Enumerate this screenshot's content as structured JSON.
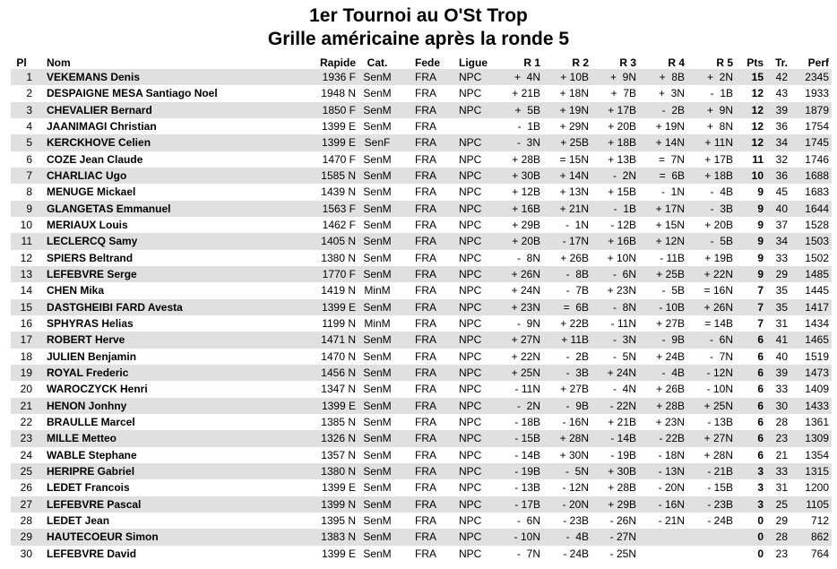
{
  "title": "1er Tournoi au O'St Trop",
  "subtitle": "Grille américaine après la ronde 5",
  "headers": [
    "Pl",
    "Nom",
    "Rapide",
    "Cat.",
    "Fede",
    "Ligue",
    "R 1",
    "R 2",
    "R 3",
    "R 4",
    "R 5",
    "Pts",
    "Tr.",
    "Perf"
  ],
  "rows": [
    [
      "1",
      "VEKEMANS Denis",
      "1936 F",
      "SenM",
      "FRA",
      "NPC",
      "+  4N",
      "+ 10B",
      "+  9N",
      "+  8B",
      "+  2N",
      "15",
      "42",
      "2345"
    ],
    [
      "2",
      "DESPAIGNE MESA Santiago Noel",
      "1948 N",
      "SenM",
      "FRA",
      "NPC",
      "+ 21B",
      "+ 18N",
      "+  7B",
      "+  3N",
      "-  1B",
      "12",
      "43",
      "1933"
    ],
    [
      "3",
      "CHEVALIER Bernard",
      "1850 F",
      "SenM",
      "FRA",
      "NPC",
      "+  5B",
      "+ 19N",
      "+ 17B",
      "-  2B",
      "+  9N",
      "12",
      "39",
      "1879"
    ],
    [
      "4",
      "JAANIMAGI Christian",
      "1399 E",
      "SenM",
      "FRA",
      "",
      "-  1B",
      "+ 29N",
      "+ 20B",
      "+ 19N",
      "+  8N",
      "12",
      "36",
      "1754"
    ],
    [
      "5",
      "KERCKHOVE Celien",
      "1399 E",
      "SenF",
      "FRA",
      "NPC",
      "-  3N",
      "+ 25B",
      "+ 18B",
      "+ 14N",
      "+ 11N",
      "12",
      "34",
      "1745"
    ],
    [
      "6",
      "COZE Jean Claude",
      "1470 F",
      "SenM",
      "FRA",
      "NPC",
      "+ 28B",
      "= 15N",
      "+ 13B",
      "=  7N",
      "+ 17B",
      "11",
      "32",
      "1746"
    ],
    [
      "7",
      "CHARLIAC Ugo",
      "1585 N",
      "SenM",
      "FRA",
      "NPC",
      "+ 30B",
      "+ 14N",
      "-  2N",
      "=  6B",
      "+ 18B",
      "10",
      "36",
      "1688"
    ],
    [
      "8",
      "MENUGE Mickael",
      "1439 N",
      "SenM",
      "FRA",
      "NPC",
      "+ 12B",
      "+ 13N",
      "+ 15B",
      "-  1N",
      "-  4B",
      "9",
      "45",
      "1683"
    ],
    [
      "9",
      "GLANGETAS Emmanuel",
      "1563 F",
      "SenM",
      "FRA",
      "NPC",
      "+ 16B",
      "+ 21N",
      "-  1B",
      "+ 17N",
      "-  3B",
      "9",
      "40",
      "1644"
    ],
    [
      "10",
      "MERIAUX Louis",
      "1462 F",
      "SenM",
      "FRA",
      "NPC",
      "+ 29B",
      "-  1N",
      "- 12B",
      "+ 15N",
      "+ 20B",
      "9",
      "37",
      "1528"
    ],
    [
      "11",
      "LECLERCQ Samy",
      "1405 N",
      "SenM",
      "FRA",
      "NPC",
      "+ 20B",
      "- 17N",
      "+ 16B",
      "+ 12N",
      "-  5B",
      "9",
      "34",
      "1503"
    ],
    [
      "12",
      "SPIERS Beltrand",
      "1380 N",
      "SenM",
      "FRA",
      "NPC",
      "-  8N",
      "+ 26B",
      "+ 10N",
      "- 11B",
      "+ 19B",
      "9",
      "33",
      "1502"
    ],
    [
      "13",
      "LEFEBVRE Serge",
      "1770 F",
      "SenM",
      "FRA",
      "NPC",
      "+ 26N",
      "-  8B",
      "-  6N",
      "+ 25B",
      "+ 22N",
      "9",
      "29",
      "1485"
    ],
    [
      "14",
      "CHEN Mika",
      "1419 N",
      "MinM",
      "FRA",
      "NPC",
      "+ 24N",
      "-  7B",
      "+ 23N",
      "-  5B",
      "= 16N",
      "7",
      "35",
      "1445"
    ],
    [
      "15",
      "DASTGHEIBI FARD Avesta",
      "1399 E",
      "SenM",
      "FRA",
      "NPC",
      "+ 23N",
      "=  6B",
      "-  8N",
      "- 10B",
      "+ 26N",
      "7",
      "35",
      "1417"
    ],
    [
      "16",
      "SPHYRAS Helias",
      "1199 N",
      "MinM",
      "FRA",
      "NPC",
      "-  9N",
      "+ 22B",
      "- 11N",
      "+ 27B",
      "= 14B",
      "7",
      "31",
      "1434"
    ],
    [
      "17",
      "ROBERT Herve",
      "1471 N",
      "SenM",
      "FRA",
      "NPC",
      "+ 27N",
      "+ 11B",
      "-  3N",
      "-  9B",
      "-  6N",
      "6",
      "41",
      "1465"
    ],
    [
      "18",
      "JULIEN Benjamin",
      "1470 N",
      "SenM",
      "FRA",
      "NPC",
      "+ 22N",
      "-  2B",
      "-  5N",
      "+ 24B",
      "-  7N",
      "6",
      "40",
      "1519"
    ],
    [
      "19",
      "ROYAL Frederic",
      "1456 N",
      "SenM",
      "FRA",
      "NPC",
      "+ 25N",
      "-  3B",
      "+ 24N",
      "-  4B",
      "- 12N",
      "6",
      "39",
      "1473"
    ],
    [
      "20",
      "WAROCZYCK Henri",
      "1347 N",
      "SenM",
      "FRA",
      "NPC",
      "- 11N",
      "+ 27B",
      "-  4N",
      "+ 26B",
      "- 10N",
      "6",
      "33",
      "1409"
    ],
    [
      "21",
      "HENON Jonhny",
      "1399 E",
      "SenM",
      "FRA",
      "NPC",
      "-  2N",
      "-  9B",
      "- 22N",
      "+ 28B",
      "+ 25N",
      "6",
      "30",
      "1433"
    ],
    [
      "22",
      "BRAULLE Marcel",
      "1385 N",
      "SenM",
      "FRA",
      "NPC",
      "- 18B",
      "- 16N",
      "+ 21B",
      "+ 23N",
      "- 13B",
      "6",
      "28",
      "1361"
    ],
    [
      "23",
      "MILLE Metteo",
      "1326 N",
      "SenM",
      "FRA",
      "NPC",
      "- 15B",
      "+ 28N",
      "- 14B",
      "- 22B",
      "+ 27N",
      "6",
      "23",
      "1309"
    ],
    [
      "24",
      "WABLE Stephane",
      "1357 N",
      "SenM",
      "FRA",
      "NPC",
      "- 14B",
      "+ 30N",
      "- 19B",
      "- 18N",
      "+ 28N",
      "6",
      "21",
      "1354"
    ],
    [
      "25",
      "HERIPRE Gabriel",
      "1380 N",
      "SenM",
      "FRA",
      "NPC",
      "- 19B",
      "-  5N",
      "+ 30B",
      "- 13N",
      "- 21B",
      "3",
      "33",
      "1315"
    ],
    [
      "26",
      "LEDET Francois",
      "1399 E",
      "SenM",
      "FRA",
      "NPC",
      "- 13B",
      "- 12N",
      "+ 28B",
      "- 20N",
      "- 15B",
      "3",
      "31",
      "1200"
    ],
    [
      "27",
      "LEFEBVRE Pascal",
      "1399 N",
      "SenM",
      "FRA",
      "NPC",
      "- 17B",
      "- 20N",
      "+ 29B",
      "- 16N",
      "- 23B",
      "3",
      "25",
      "1105"
    ],
    [
      "28",
      "LEDET Jean",
      "1395 N",
      "SenM",
      "FRA",
      "NPC",
      "-  6N",
      "- 23B",
      "- 26N",
      "- 21N",
      "- 24B",
      "0",
      "29",
      "712"
    ],
    [
      "29",
      "HAUTECOEUR Simon",
      "1383 N",
      "SenM",
      "FRA",
      "NPC",
      "- 10N",
      "-  4B",
      "- 27N",
      "",
      "",
      "0",
      "28",
      "862"
    ],
    [
      "30",
      "LEFEBVRE David",
      "1399 E",
      "SenM",
      "FRA",
      "NPC",
      "-  7N",
      "- 24B",
      "- 25N",
      "",
      "",
      "0",
      "23",
      "764"
    ]
  ],
  "stripe_color": "#e0e0e0"
}
